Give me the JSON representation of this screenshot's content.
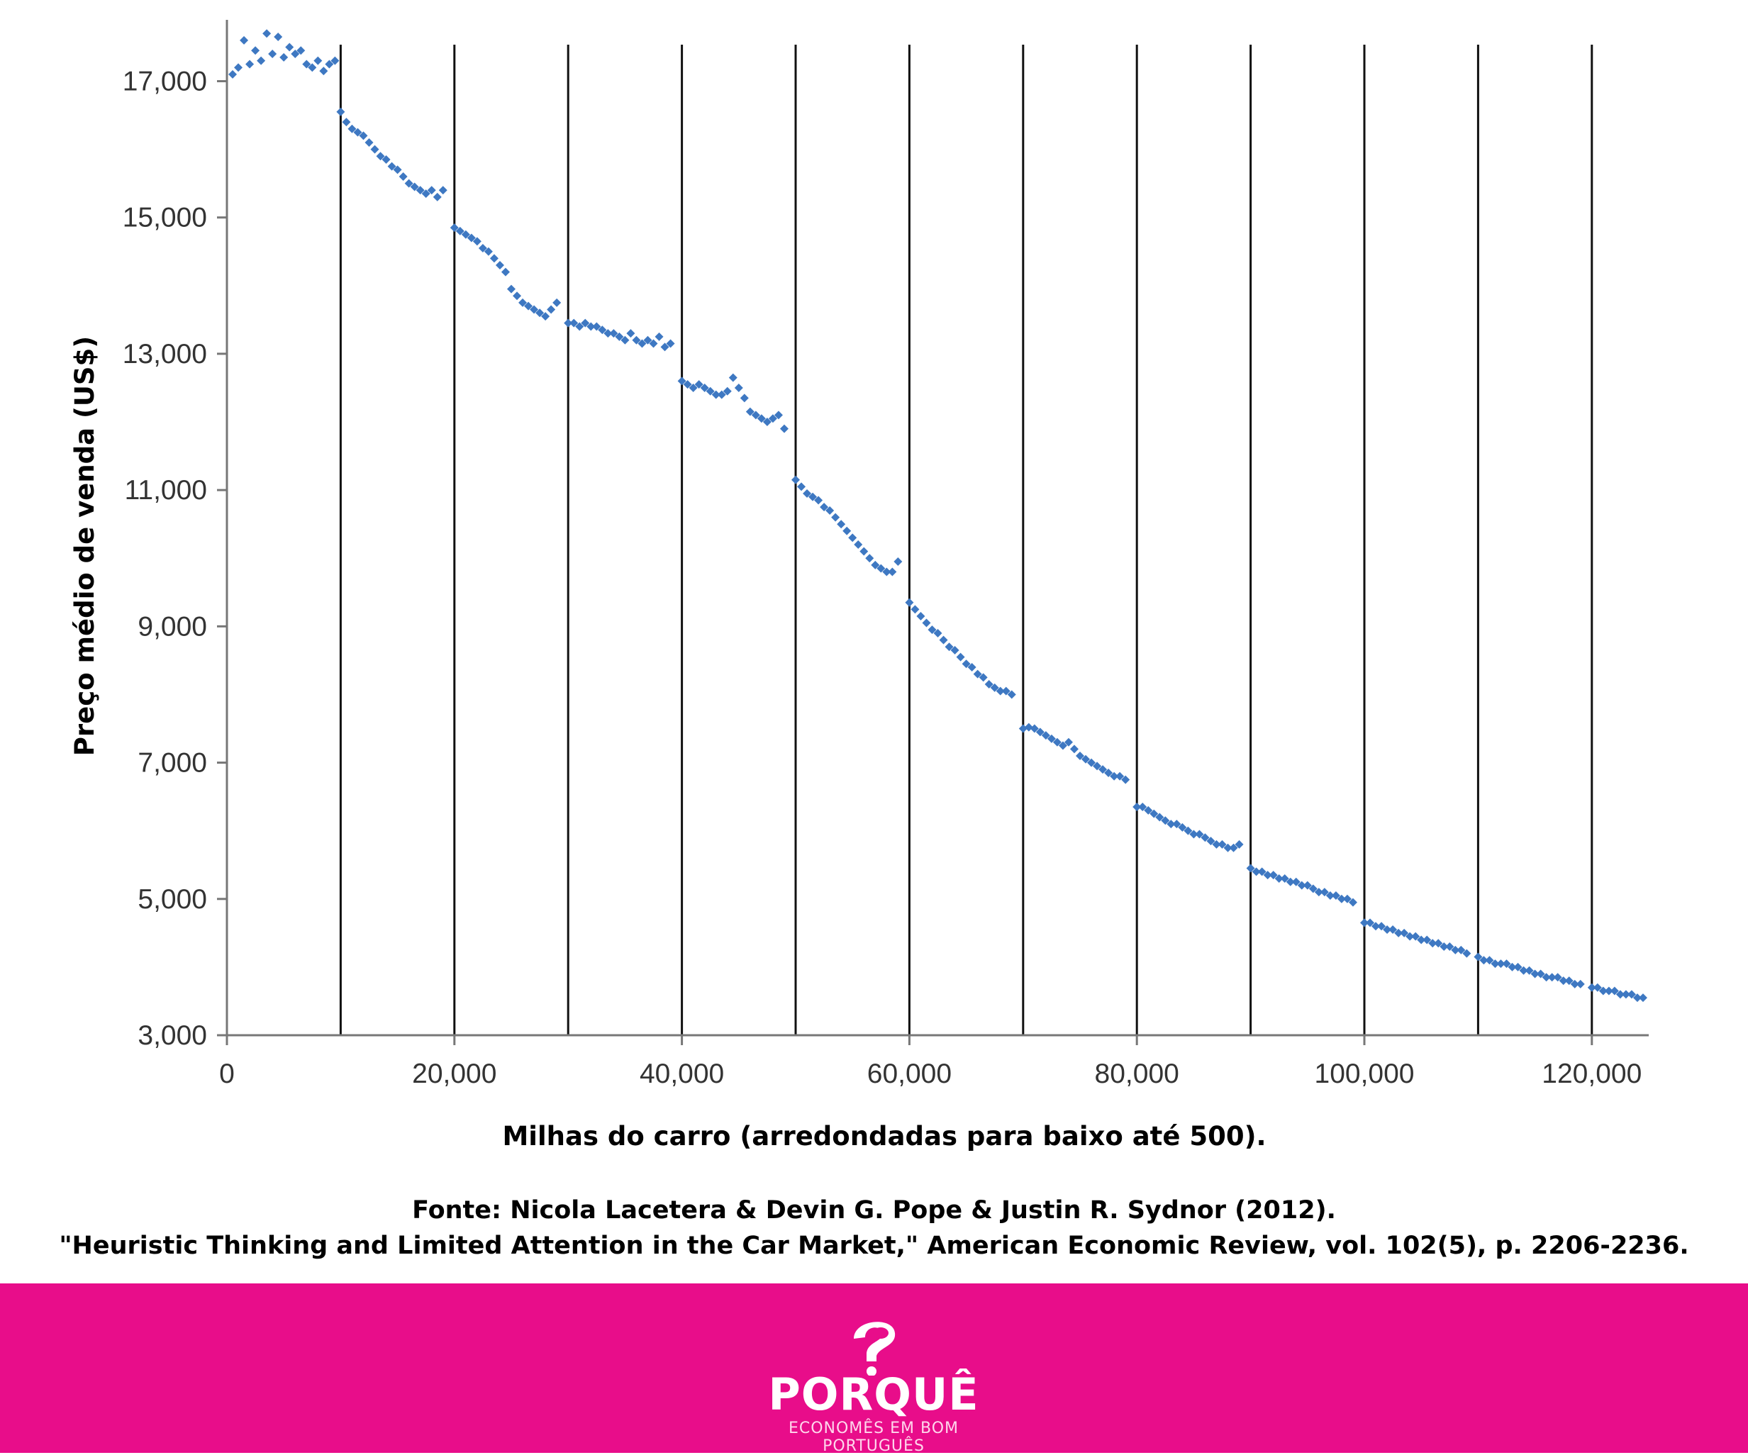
{
  "chart_data": {
    "type": "scatter",
    "title": "",
    "xlabel": "Milhas do carro (arredondadas para baixo até 500).",
    "ylabel": "Preço médio de venda (US$)",
    "xlim": [
      0,
      125000
    ],
    "ylim": [
      3000,
      17900
    ],
    "x_ticks": [
      0,
      20000,
      40000,
      60000,
      80000,
      100000,
      120000
    ],
    "x_tick_labels": [
      "0",
      "20,000",
      "40,000",
      "60,000",
      "80,000",
      "100,000",
      "120,000"
    ],
    "y_ticks": [
      3000,
      5000,
      7000,
      9000,
      11000,
      13000,
      15000,
      17000
    ],
    "y_tick_labels": [
      "3,000",
      "5,000",
      "7,000",
      "9,000",
      "11,000",
      "13,000",
      "15,000",
      "17,000"
    ],
    "vertical_lines": [
      10000,
      20000,
      30000,
      40000,
      50000,
      60000,
      70000,
      80000,
      90000,
      100000,
      110000,
      120000
    ],
    "marker_color": "#3e78c2",
    "line_color": "#111111",
    "points": [
      [
        500,
        17100
      ],
      [
        1000,
        17200
      ],
      [
        1500,
        17600
      ],
      [
        2000,
        17250
      ],
      [
        2500,
        17450
      ],
      [
        3000,
        17300
      ],
      [
        3500,
        17700
      ],
      [
        4000,
        17400
      ],
      [
        4500,
        17650
      ],
      [
        5000,
        17350
      ],
      [
        5500,
        17500
      ],
      [
        6000,
        17400
      ],
      [
        6500,
        17450
      ],
      [
        7000,
        17250
      ],
      [
        7500,
        17200
      ],
      [
        8000,
        17300
      ],
      [
        8500,
        17150
      ],
      [
        9000,
        17250
      ],
      [
        9500,
        17300
      ],
      [
        10000,
        16550
      ],
      [
        10500,
        16400
      ],
      [
        11000,
        16300
      ],
      [
        11500,
        16250
      ],
      [
        12000,
        16200
      ],
      [
        12500,
        16100
      ],
      [
        13000,
        16000
      ],
      [
        13500,
        15900
      ],
      [
        14000,
        15850
      ],
      [
        14500,
        15750
      ],
      [
        15000,
        15700
      ],
      [
        15500,
        15600
      ],
      [
        16000,
        15500
      ],
      [
        16500,
        15450
      ],
      [
        17000,
        15400
      ],
      [
        17500,
        15350
      ],
      [
        18000,
        15400
      ],
      [
        18500,
        15300
      ],
      [
        19000,
        15400
      ],
      [
        20000,
        14850
      ],
      [
        20500,
        14800
      ],
      [
        21000,
        14750
      ],
      [
        21500,
        14700
      ],
      [
        22000,
        14650
      ],
      [
        22500,
        14550
      ],
      [
        23000,
        14500
      ],
      [
        23500,
        14400
      ],
      [
        24000,
        14300
      ],
      [
        24500,
        14200
      ],
      [
        25000,
        13950
      ],
      [
        25500,
        13850
      ],
      [
        26000,
        13750
      ],
      [
        26500,
        13700
      ],
      [
        27000,
        13650
      ],
      [
        27500,
        13600
      ],
      [
        28000,
        13550
      ],
      [
        28500,
        13650
      ],
      [
        29000,
        13750
      ],
      [
        30000,
        13450
      ],
      [
        30500,
        13450
      ],
      [
        31000,
        13400
      ],
      [
        31500,
        13450
      ],
      [
        32000,
        13400
      ],
      [
        32500,
        13400
      ],
      [
        33000,
        13350
      ],
      [
        33500,
        13300
      ],
      [
        34000,
        13300
      ],
      [
        34500,
        13250
      ],
      [
        35000,
        13200
      ],
      [
        35500,
        13300
      ],
      [
        36000,
        13200
      ],
      [
        36500,
        13150
      ],
      [
        37000,
        13200
      ],
      [
        37500,
        13150
      ],
      [
        38000,
        13250
      ],
      [
        38500,
        13100
      ],
      [
        39000,
        13150
      ],
      [
        40000,
        12600
      ],
      [
        40500,
        12550
      ],
      [
        41000,
        12500
      ],
      [
        41500,
        12550
      ],
      [
        42000,
        12500
      ],
      [
        42500,
        12450
      ],
      [
        43000,
        12400
      ],
      [
        43500,
        12400
      ],
      [
        44000,
        12450
      ],
      [
        44500,
        12650
      ],
      [
        45000,
        12500
      ],
      [
        45500,
        12350
      ],
      [
        46000,
        12150
      ],
      [
        46500,
        12100
      ],
      [
        47000,
        12050
      ],
      [
        47500,
        12000
      ],
      [
        48000,
        12050
      ],
      [
        48500,
        12100
      ],
      [
        49000,
        11900
      ],
      [
        50000,
        11150
      ],
      [
        50500,
        11050
      ],
      [
        51000,
        10950
      ],
      [
        51500,
        10900
      ],
      [
        52000,
        10850
      ],
      [
        52500,
        10750
      ],
      [
        53000,
        10700
      ],
      [
        53500,
        10600
      ],
      [
        54000,
        10500
      ],
      [
        54500,
        10400
      ],
      [
        55000,
        10300
      ],
      [
        55500,
        10200
      ],
      [
        56000,
        10100
      ],
      [
        56500,
        10000
      ],
      [
        57000,
        9900
      ],
      [
        57500,
        9850
      ],
      [
        58000,
        9800
      ],
      [
        58500,
        9800
      ],
      [
        59000,
        9950
      ],
      [
        60000,
        9350
      ],
      [
        60500,
        9250
      ],
      [
        61000,
        9150
      ],
      [
        61500,
        9050
      ],
      [
        62000,
        8950
      ],
      [
        62500,
        8900
      ],
      [
        63000,
        8800
      ],
      [
        63500,
        8700
      ],
      [
        64000,
        8650
      ],
      [
        64500,
        8550
      ],
      [
        65000,
        8450
      ],
      [
        65500,
        8400
      ],
      [
        66000,
        8300
      ],
      [
        66500,
        8250
      ],
      [
        67000,
        8150
      ],
      [
        67500,
        8100
      ],
      [
        68000,
        8050
      ],
      [
        68500,
        8050
      ],
      [
        69000,
        8000
      ],
      [
        70000,
        7500
      ],
      [
        70500,
        7520
      ],
      [
        71000,
        7500
      ],
      [
        71500,
        7450
      ],
      [
        72000,
        7400
      ],
      [
        72500,
        7350
      ],
      [
        73000,
        7300
      ],
      [
        73500,
        7250
      ],
      [
        74000,
        7300
      ],
      [
        74500,
        7200
      ],
      [
        75000,
        7100
      ],
      [
        75500,
        7050
      ],
      [
        76000,
        7000
      ],
      [
        76500,
        6950
      ],
      [
        77000,
        6900
      ],
      [
        77500,
        6850
      ],
      [
        78000,
        6800
      ],
      [
        78500,
        6800
      ],
      [
        79000,
        6750
      ],
      [
        80000,
        6350
      ],
      [
        80500,
        6350
      ],
      [
        81000,
        6300
      ],
      [
        81500,
        6250
      ],
      [
        82000,
        6200
      ],
      [
        82500,
        6150
      ],
      [
        83000,
        6100
      ],
      [
        83500,
        6100
      ],
      [
        84000,
        6050
      ],
      [
        84500,
        6000
      ],
      [
        85000,
        5950
      ],
      [
        85500,
        5950
      ],
      [
        86000,
        5900
      ],
      [
        86500,
        5850
      ],
      [
        87000,
        5800
      ],
      [
        87500,
        5800
      ],
      [
        88000,
        5750
      ],
      [
        88500,
        5750
      ],
      [
        89000,
        5800
      ],
      [
        90000,
        5450
      ],
      [
        90500,
        5400
      ],
      [
        91000,
        5400
      ],
      [
        91500,
        5350
      ],
      [
        92000,
        5350
      ],
      [
        92500,
        5300
      ],
      [
        93000,
        5300
      ],
      [
        93500,
        5250
      ],
      [
        94000,
        5250
      ],
      [
        94500,
        5200
      ],
      [
        95000,
        5200
      ],
      [
        95500,
        5150
      ],
      [
        96000,
        5100
      ],
      [
        96500,
        5100
      ],
      [
        97000,
        5050
      ],
      [
        97500,
        5050
      ],
      [
        98000,
        5000
      ],
      [
        98500,
        5000
      ],
      [
        99000,
        4950
      ],
      [
        100000,
        4650
      ],
      [
        100500,
        4650
      ],
      [
        101000,
        4600
      ],
      [
        101500,
        4600
      ],
      [
        102000,
        4550
      ],
      [
        102500,
        4550
      ],
      [
        103000,
        4500
      ],
      [
        103500,
        4500
      ],
      [
        104000,
        4450
      ],
      [
        104500,
        4450
      ],
      [
        105000,
        4400
      ],
      [
        105500,
        4400
      ],
      [
        106000,
        4350
      ],
      [
        106500,
        4350
      ],
      [
        107000,
        4300
      ],
      [
        107500,
        4300
      ],
      [
        108000,
        4250
      ],
      [
        108500,
        4250
      ],
      [
        109000,
        4200
      ],
      [
        110000,
        4150
      ],
      [
        110500,
        4100
      ],
      [
        111000,
        4100
      ],
      [
        111500,
        4050
      ],
      [
        112000,
        4050
      ],
      [
        112500,
        4050
      ],
      [
        113000,
        4000
      ],
      [
        113500,
        4000
      ],
      [
        114000,
        3950
      ],
      [
        114500,
        3950
      ],
      [
        115000,
        3900
      ],
      [
        115500,
        3900
      ],
      [
        116000,
        3850
      ],
      [
        116500,
        3850
      ],
      [
        117000,
        3850
      ],
      [
        117500,
        3800
      ],
      [
        118000,
        3800
      ],
      [
        118500,
        3750
      ],
      [
        119000,
        3750
      ],
      [
        120000,
        3700
      ],
      [
        120500,
        3700
      ],
      [
        121000,
        3650
      ],
      [
        121500,
        3650
      ],
      [
        122000,
        3650
      ],
      [
        122500,
        3600
      ],
      [
        123000,
        3600
      ],
      [
        123500,
        3600
      ],
      [
        124000,
        3550
      ],
      [
        124500,
        3550
      ]
    ]
  },
  "source": {
    "line1": "Fonte: Nicola Lacetera & Devin G. Pope & Justin R. Sydnor (2012).",
    "line2": "\"Heuristic Thinking and Limited Attention in the Car Market,\" American Economic Review, vol. 102(5), p. 2206-2236."
  },
  "footer": {
    "background": "#e80d8a",
    "logo_text": "PORQUÊ",
    "tagline": "ECONOMÊS EM BOM PORTUGUÊS"
  }
}
